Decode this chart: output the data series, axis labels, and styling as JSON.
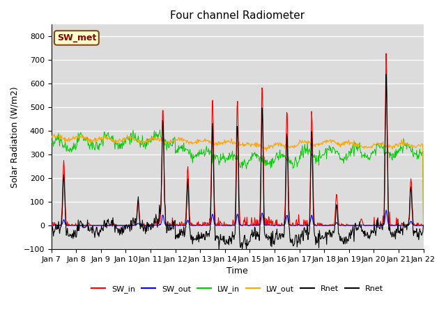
{
  "title": "Four channel Radiometer",
  "xlabel": "Time",
  "ylabel": "Solar Radiation (W/m2)",
  "ylim": [
    -100,
    850
  ],
  "xlim": [
    0,
    15
  ],
  "plot_bg_color": "#dcdcdc",
  "fig_bg_color": "#ffffff",
  "annotation_text": "SW_met",
  "annotation_bg": "#ffffcc",
  "annotation_border": "#8B4513",
  "annotation_text_color": "#8B0000",
  "legend_entries": [
    "SW_in",
    "SW_out",
    "LW_in",
    "LW_out",
    "Rnet",
    "Rnet"
  ],
  "legend_colors": [
    "red",
    "blue",
    "#00cc00",
    "orange",
    "black",
    "black"
  ],
  "x_tick_labels": [
    "Jan 7",
    "Jan 8",
    "Jan 9",
    "Jan 10",
    "Jan 11",
    "Jan 12",
    "Jan 13",
    "Jan 14",
    "Jan 15",
    "Jan 16",
    "Jan 17",
    "Jan 18",
    "Jan 19",
    "Jan 20",
    "Jan 21",
    "Jan 22"
  ],
  "grid_color": "#ffffff",
  "yticks": [
    -100,
    0,
    100,
    200,
    300,
    400,
    500,
    600,
    700,
    800
  ],
  "day_peaks": [
    280,
    10,
    10,
    105,
    505,
    255,
    530,
    535,
    600,
    500,
    480,
    133,
    28,
    730,
    200
  ],
  "lw_in_base": 330,
  "lw_out_base": 365,
  "lw_night_net": -80
}
